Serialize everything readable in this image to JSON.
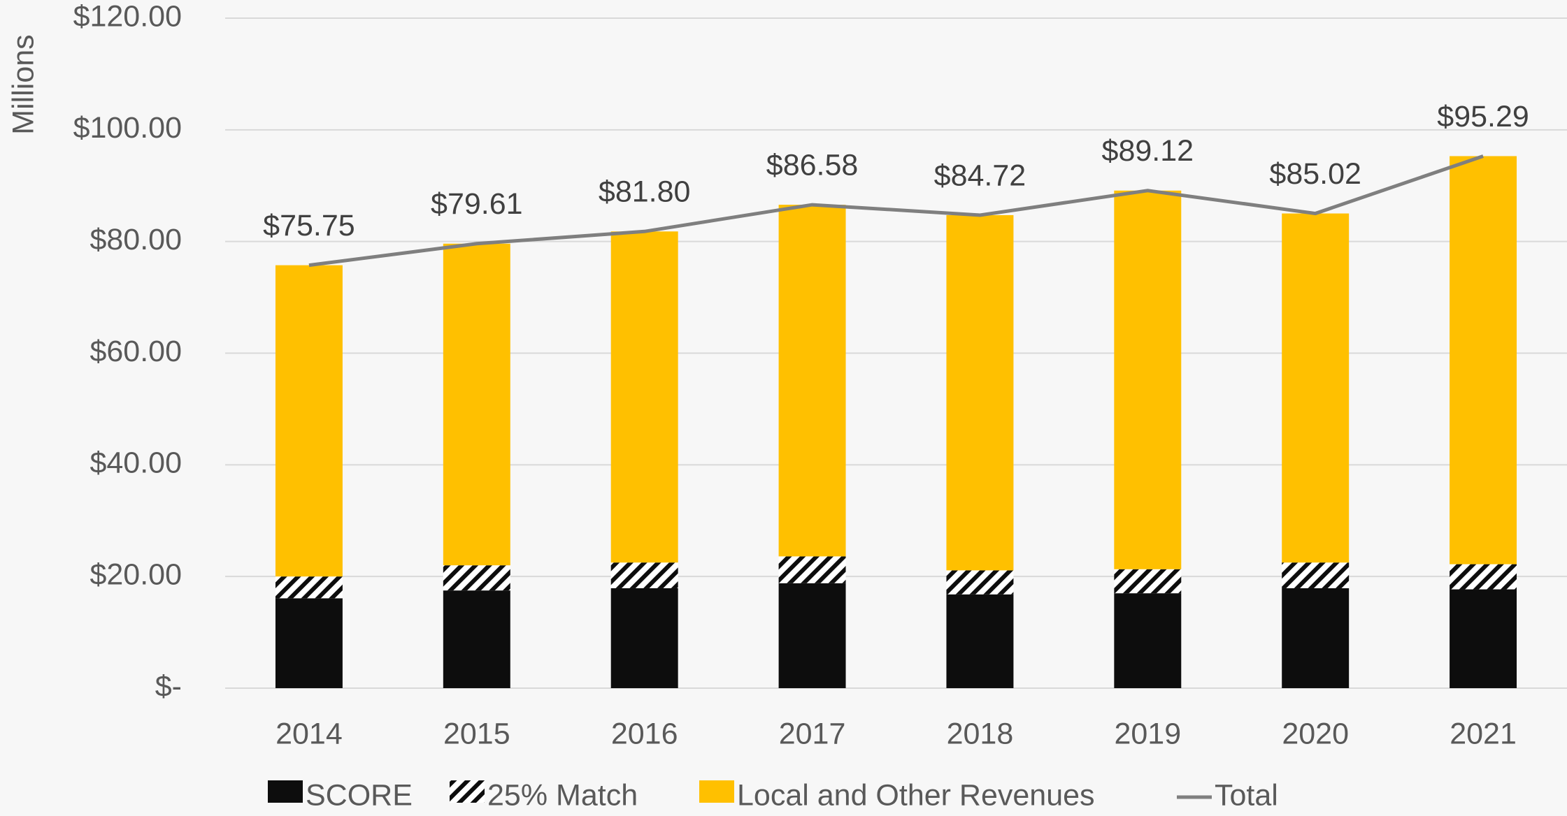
{
  "chart_data": {
    "type": "bar",
    "stacked": true,
    "y_label": "Millions",
    "categories": [
      "2014",
      "2015",
      "2016",
      "2017",
      "2018",
      "2019",
      "2020",
      "2021"
    ],
    "series": [
      {
        "name": "SCORE",
        "color": "#0d0d0d",
        "values": [
          16.1,
          17.5,
          17.9,
          18.8,
          16.8,
          17.0,
          17.9,
          17.7
        ]
      },
      {
        "name": "25% Match",
        "color": "#0d0d0d",
        "hatch": true,
        "values": [
          3.9,
          4.5,
          4.6,
          4.8,
          4.3,
          4.3,
          4.6,
          4.5
        ]
      },
      {
        "name": "Local and Other Revenues",
        "color": "#ffc000",
        "values": [
          55.75,
          57.61,
          59.3,
          62.98,
          63.62,
          67.82,
          62.52,
          73.09
        ]
      },
      {
        "name": "Total",
        "type": "line",
        "color": "#7f7f7f",
        "values": [
          75.75,
          79.61,
          81.8,
          86.58,
          84.72,
          89.12,
          85.02,
          95.29
        ],
        "value_labels": [
          "$75.75",
          "$79.61",
          "$81.80",
          "$86.58",
          "$84.72",
          "$89.12",
          "$85.02",
          "$95.29"
        ]
      }
    ],
    "ylim": [
      0,
      120
    ],
    "yticks": [
      {
        "value": 0,
        "label": "$-"
      },
      {
        "value": 20,
        "label": "$20.00"
      },
      {
        "value": 40,
        "label": "$40.00"
      },
      {
        "value": 60,
        "label": "$60.00"
      },
      {
        "value": 80,
        "label": "$80.00"
      },
      {
        "value": 100,
        "label": "$100.00"
      },
      {
        "value": 120,
        "label": "$120.00"
      }
    ],
    "grid": true,
    "legend": "bottom"
  }
}
